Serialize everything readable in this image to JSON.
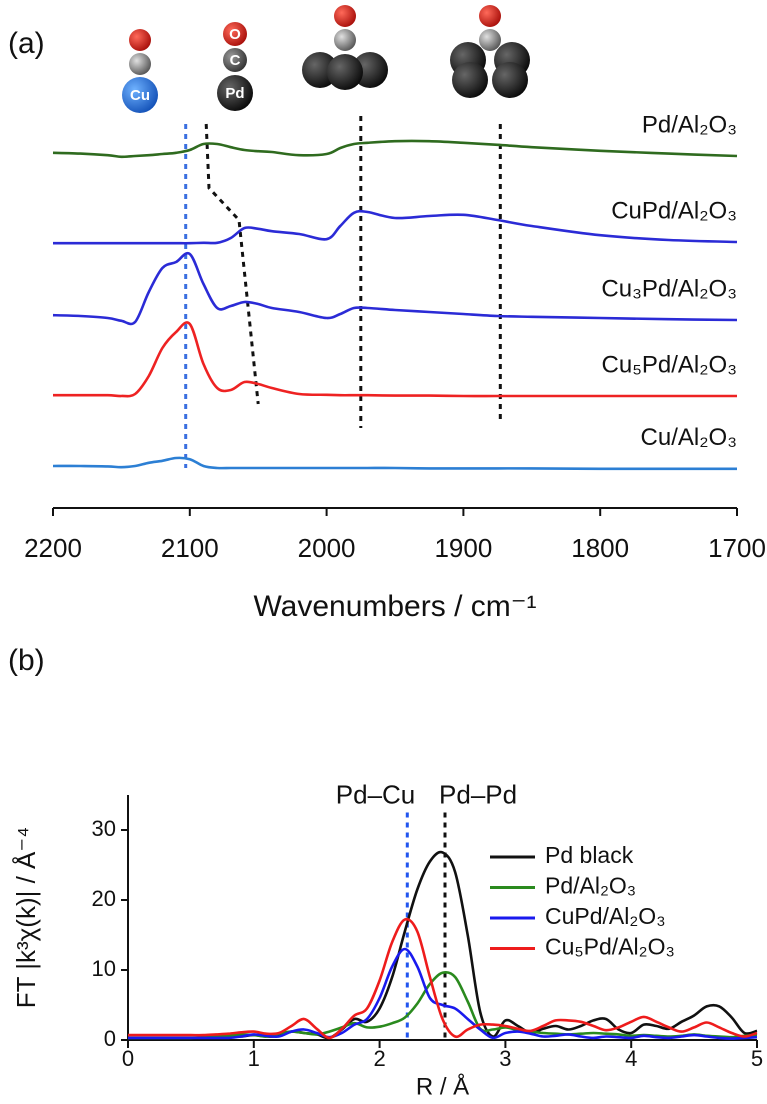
{
  "chart_data": [
    {
      "type": "line",
      "panel_label": "(a)",
      "xlabel": "Wavenumbers / cm⁻¹",
      "icon_labels": [
        "Cu",
        "O",
        "C",
        "Pd"
      ],
      "x": [
        2200,
        2180,
        2160,
        2150,
        2140,
        2130,
        2120,
        2110,
        2100,
        2090,
        2080,
        2070,
        2060,
        2050,
        2040,
        2020,
        2000,
        1990,
        1980,
        1970,
        1950,
        1925,
        1900,
        1875,
        1850,
        1800,
        1750,
        1700
      ],
      "xlim": [
        2200,
        1700
      ],
      "xticks": [
        2200,
        2100,
        2000,
        1900,
        1800,
        1700
      ],
      "ylim": [
        0,
        10
      ],
      "legend": "inline",
      "series": [
        {
          "name": "Pd/Al₂O₃",
          "color": "#2f6b1f",
          "values": [
            8.88,
            8.86,
            8.82,
            8.78,
            8.8,
            8.82,
            8.85,
            8.88,
            8.95,
            9.1,
            9.1,
            9.02,
            8.95,
            8.92,
            8.9,
            8.82,
            8.85,
            9.0,
            9.1,
            9.13,
            9.17,
            9.17,
            9.13,
            9.08,
            9.02,
            8.93,
            8.86,
            8.8
          ]
        },
        {
          "name": "CuPd/Al₂O₃",
          "color": "#2b2bd6",
          "values": [
            6.62,
            6.62,
            6.62,
            6.62,
            6.62,
            6.62,
            6.62,
            6.62,
            6.62,
            6.63,
            6.63,
            6.75,
            7.0,
            6.98,
            6.92,
            6.85,
            6.72,
            7.05,
            7.38,
            7.4,
            7.25,
            7.3,
            7.33,
            7.2,
            7.05,
            6.82,
            6.7,
            6.65
          ]
        },
        {
          "name": "Cu₃Pd/Al₂O₃",
          "color": "#2b2bd6",
          "values": [
            4.82,
            4.8,
            4.75,
            4.68,
            4.65,
            5.4,
            6.0,
            6.15,
            6.35,
            5.6,
            5.0,
            5.05,
            5.15,
            5.1,
            5.0,
            4.9,
            4.75,
            4.85,
            5.0,
            5.0,
            4.95,
            4.9,
            4.85,
            4.8,
            4.78,
            4.75,
            4.72,
            4.7
          ]
        },
        {
          "name": "Cu₅Pd/Al₂O₃",
          "color": "#ee2222",
          "values": [
            2.82,
            2.82,
            2.82,
            2.8,
            2.85,
            3.3,
            4.0,
            4.4,
            4.6,
            3.6,
            3.0,
            2.95,
            3.15,
            3.1,
            3.0,
            2.85,
            2.83,
            2.82,
            2.82,
            2.82,
            2.81,
            2.81,
            2.8,
            2.8,
            2.8,
            2.8,
            2.8,
            2.8
          ]
        },
        {
          "name": "Cu/Al₂O₃",
          "color": "#2c7fd4",
          "values": [
            1.05,
            1.05,
            1.04,
            1.02,
            1.05,
            1.13,
            1.18,
            1.25,
            1.22,
            1.05,
            1.0,
            1.0,
            1.0,
            1.0,
            1.0,
            1.0,
            1.0,
            1.0,
            1.0,
            1.0,
            1.0,
            0.99,
            0.99,
            0.99,
            0.99,
            0.98,
            0.98,
            0.98
          ]
        }
      ],
      "guides": [
        {
          "color": "#3a6fe0",
          "x": [
            2103,
            2103
          ],
          "y": [
            9.6,
            1.0
          ]
        },
        {
          "color": "#111111",
          "x": [
            2088,
            2086,
            2064,
            2050
          ],
          "y": [
            9.6,
            8.0,
            7.2,
            2.6
          ]
        },
        {
          "color": "#111111",
          "x": [
            1975,
            1975
          ],
          "y": [
            9.8,
            2.0
          ]
        },
        {
          "color": "#111111",
          "x": [
            1873,
            1873
          ],
          "y": [
            9.6,
            2.2
          ]
        }
      ]
    },
    {
      "type": "line",
      "panel_label": "(b)",
      "xlabel": "R / Å",
      "ylabel": "FT |k³χ(k)| / Å⁻⁴",
      "x": [
        0,
        0.1,
        0.2,
        0.3,
        0.4,
        0.5,
        0.6,
        0.7,
        0.8,
        0.9,
        1.0,
        1.1,
        1.2,
        1.3,
        1.4,
        1.5,
        1.6,
        1.7,
        1.8,
        1.9,
        2.0,
        2.1,
        2.2,
        2.3,
        2.4,
        2.5,
        2.6,
        2.7,
        2.8,
        2.9,
        3.0,
        3.1,
        3.2,
        3.3,
        3.4,
        3.5,
        3.6,
        3.7,
        3.8,
        3.9,
        4.0,
        4.1,
        4.2,
        4.3,
        4.4,
        4.5,
        4.6,
        4.7,
        4.8,
        4.9,
        5.0
      ],
      "xlim": [
        0,
        5
      ],
      "xticks": [
        0,
        1,
        2,
        3,
        4,
        5
      ],
      "ylim": [
        0,
        35
      ],
      "yticks": [
        0,
        10,
        20,
        30
      ],
      "legend": "upper right",
      "series": [
        {
          "name": "Pd black",
          "color": "#111111",
          "values": [
            0.2,
            0.2,
            0.2,
            0.2,
            0.2,
            0.2,
            0.3,
            0.4,
            0.4,
            0.5,
            0.7,
            0.5,
            0.6,
            1.2,
            1.0,
            0.8,
            0.3,
            1.5,
            3.0,
            2.6,
            4.5,
            9.0,
            15.5,
            21.5,
            25.5,
            26.8,
            24.0,
            15.0,
            4.0,
            0.5,
            2.8,
            2.0,
            1.0,
            1.6,
            2.0,
            1.5,
            2.0,
            2.8,
            3.0,
            1.5,
            1.0,
            2.2,
            2.0,
            1.6,
            2.6,
            3.5,
            4.8,
            4.8,
            3.2,
            1.0,
            1.3
          ]
        },
        {
          "name": "Pd/Al₂O₃",
          "color": "#2a8a1e",
          "values": [
            0.3,
            0.3,
            0.3,
            0.3,
            0.3,
            0.3,
            0.4,
            0.5,
            0.6,
            0.8,
            0.7,
            0.5,
            0.9,
            1.2,
            1.0,
            0.8,
            1.2,
            1.8,
            2.4,
            1.8,
            1.9,
            2.4,
            3.2,
            5.2,
            8.0,
            9.6,
            9.0,
            5.5,
            1.6,
            1.5,
            1.8,
            1.4,
            1.2,
            1.0,
            0.9,
            0.8,
            0.9,
            1.0,
            0.9,
            0.8,
            0.6,
            0.7,
            0.6,
            0.5,
            0.6,
            0.8,
            0.6,
            0.5,
            0.4,
            0.6,
            0.7
          ]
        },
        {
          "name": "CuPd/Al₂O₃",
          "color": "#1a1aee",
          "values": [
            0.3,
            0.3,
            0.3,
            0.3,
            0.3,
            0.3,
            0.3,
            0.3,
            0.3,
            0.5,
            0.8,
            0.6,
            0.5,
            1.2,
            1.5,
            1.0,
            0.4,
            1.0,
            2.2,
            3.0,
            6.0,
            10.5,
            13.0,
            10.5,
            6.0,
            5.0,
            4.5,
            3.0,
            1.5,
            0.3,
            1.0,
            1.2,
            0.9,
            0.5,
            0.6,
            0.8,
            0.5,
            0.3,
            0.5,
            0.4,
            0.3,
            0.6,
            0.4,
            0.3,
            0.5,
            0.7,
            0.5,
            0.3,
            0.2,
            0.3,
            0.4
          ]
        },
        {
          "name": "Cu₅Pd/Al₂O₃",
          "color": "#ee1c1c",
          "values": [
            0.7,
            0.7,
            0.7,
            0.7,
            0.7,
            0.7,
            0.7,
            0.8,
            0.9,
            1.1,
            1.2,
            0.9,
            1.0,
            2.0,
            3.0,
            1.6,
            0.3,
            1.6,
            3.5,
            4.5,
            8.5,
            14.0,
            17.2,
            15.5,
            9.0,
            3.0,
            0.5,
            1.5,
            2.2,
            2.2,
            2.0,
            1.6,
            1.3,
            2.0,
            2.8,
            2.8,
            2.6,
            2.0,
            1.4,
            1.8,
            2.6,
            3.3,
            2.6,
            1.8,
            1.2,
            1.8,
            2.5,
            1.8,
            1.0,
            0.5,
            1.0
          ]
        }
      ],
      "guides": [
        {
          "text": "Pd–Cu",
          "color": "#2255ee",
          "label_side": "left",
          "x": [
            2.22,
            2.22
          ],
          "y": [
            32.5,
            0
          ]
        },
        {
          "text": "Pd–Pd",
          "color": "#111111",
          "label_side": "right",
          "x": [
            2.52,
            2.52
          ],
          "y": [
            32.5,
            0
          ]
        }
      ]
    }
  ]
}
